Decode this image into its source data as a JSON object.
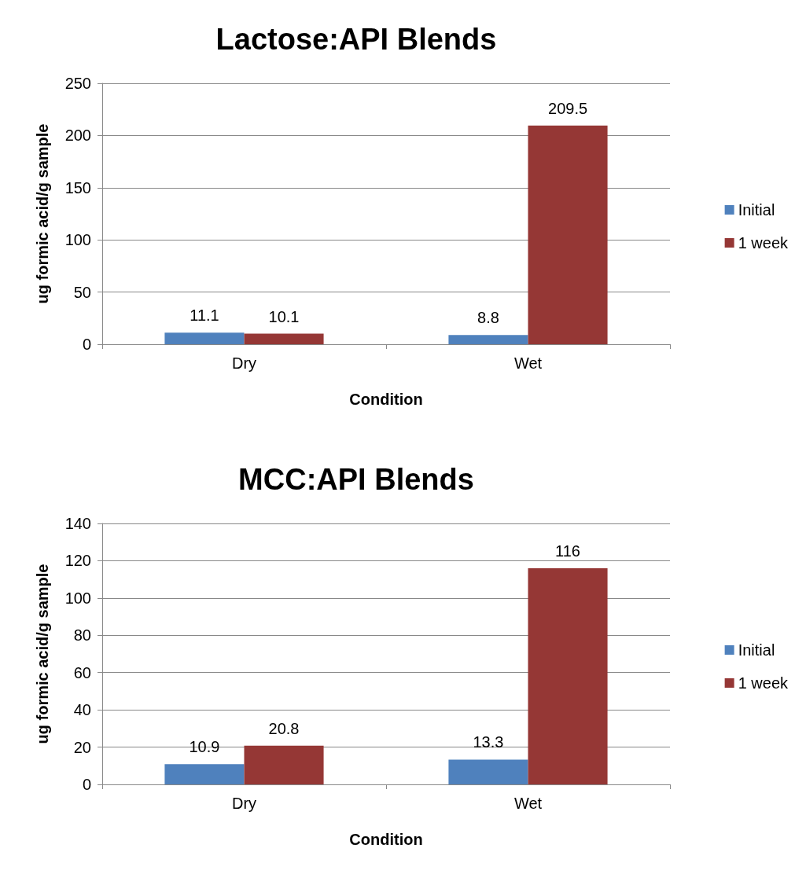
{
  "chart_data": [
    {
      "type": "bar",
      "title": "Lactose:API Blends",
      "xlabel": "Condition",
      "ylabel": "ug formic acid/g sample",
      "categories": [
        "Dry",
        "Wet"
      ],
      "series": [
        {
          "name": "Initial",
          "color": "#4f81bd",
          "values": [
            11.1,
            8.8
          ]
        },
        {
          "name": "1 week",
          "color": "#953735",
          "values": [
            10.1,
            209.5
          ]
        }
      ],
      "ylim": [
        0,
        250
      ],
      "yticks": [
        0,
        50,
        100,
        150,
        200,
        250
      ],
      "grid": "y",
      "legend": "right",
      "data_labels": true
    },
    {
      "type": "bar",
      "title": "MCC:API Blends",
      "xlabel": "Condition",
      "ylabel": "ug formic acid/g sample",
      "categories": [
        "Dry",
        "Wet"
      ],
      "series": [
        {
          "name": "Initial",
          "color": "#4f81bd",
          "values": [
            10.9,
            13.3
          ]
        },
        {
          "name": "1 week",
          "color": "#953735",
          "values": [
            20.8,
            116
          ]
        }
      ],
      "ylim": [
        0,
        140
      ],
      "yticks": [
        0,
        20,
        40,
        60,
        80,
        100,
        120,
        140
      ],
      "grid": "y",
      "legend": "right",
      "data_labels": true
    }
  ]
}
